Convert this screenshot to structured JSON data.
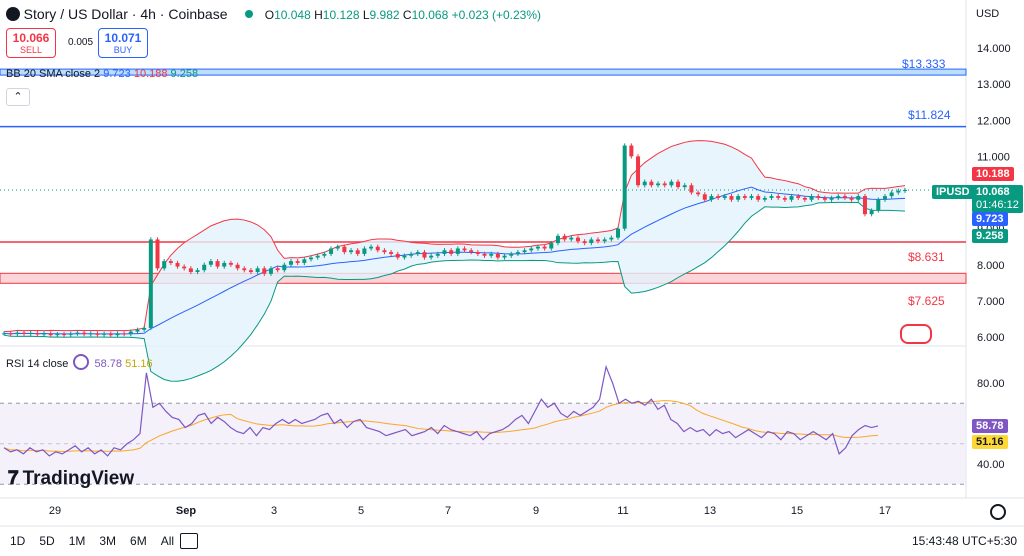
{
  "header": {
    "symbol_title": "Story / US Dollar · 4h · Coinbase",
    "ohlc": {
      "o_label": "O",
      "o": "10.048",
      "h_label": "H",
      "h": "10.128",
      "l_label": "L",
      "l": "9.982",
      "c_label": "C",
      "c": "10.068",
      "change": "+0.023 (+0.23%)"
    },
    "currency": "USD"
  },
  "trade": {
    "sell_price": "10.066",
    "sell_label": "SELL",
    "spread": "0.005",
    "buy_price": "10.071",
    "buy_label": "BUY"
  },
  "indicators": {
    "bb_name": "BB 20 SMA close 2",
    "bb_basis": "9.723",
    "bb_upper": "10.188",
    "bb_lower": "9.258",
    "rsi_name": "RSI 14 close",
    "rsi_value": "58.78",
    "rsi_ma": "51.16"
  },
  "levels": {
    "l1": "$13.333",
    "l2": "$11.824",
    "l3": "$8.631",
    "l4": "$7.625"
  },
  "price_tags": {
    "upper": "10.188",
    "symbol": "IPUSD",
    "last": "10.068",
    "countdown": "01:46:12",
    "basis": "9.723",
    "lower": "9.258"
  },
  "rsi_tags": {
    "rsi": "58.78",
    "ma": "51.16"
  },
  "bottom": {
    "timeframes": [
      "1D",
      "5D",
      "1M",
      "3M",
      "6M",
      "All"
    ],
    "time": "15:43:48 UTC+5:30",
    "logo": "TradingView"
  },
  "colors": {
    "up": "#089981",
    "down": "#f23645",
    "basis": "#2962ff",
    "rsi_line": "#7e57c2",
    "rsi_ma": "#fdd835"
  },
  "chart_data": {
    "type": "candlestick",
    "price_axis_ticks": [
      "14.000",
      "13.000",
      "12.000",
      "11.000",
      "10.000",
      "9.000",
      "8.000",
      "7.000",
      "6.000"
    ],
    "rsi_axis_ticks": [
      "80.00",
      "40.00"
    ],
    "x_ticks": [
      "29",
      "Sep",
      "3",
      "5",
      "7",
      "9",
      "11",
      "13",
      "15",
      "17"
    ],
    "price_ylim": [
      6.0,
      14.0
    ],
    "rsi_ylim": [
      30,
      90
    ],
    "hlines": [
      13.333,
      11.824,
      8.631,
      7.625
    ],
    "candles_close": [
      6.1,
      6.08,
      6.12,
      6.09,
      6.11,
      6.07,
      6.1,
      6.05,
      6.08,
      6.06,
      6.09,
      6.12,
      6.08,
      6.1,
      6.06,
      6.09,
      6.05,
      6.1,
      6.08,
      6.15,
      6.2,
      6.25,
      8.7,
      7.9,
      8.1,
      8.05,
      7.95,
      7.9,
      7.8,
      7.85,
      8.0,
      8.1,
      7.95,
      8.05,
      8.0,
      7.9,
      7.85,
      7.8,
      7.9,
      7.75,
      7.9,
      7.85,
      8.0,
      8.1,
      8.05,
      8.15,
      8.2,
      8.25,
      8.3,
      8.45,
      8.5,
      8.35,
      8.4,
      8.3,
      8.45,
      8.5,
      8.4,
      8.35,
      8.3,
      8.2,
      8.25,
      8.3,
      8.35,
      8.2,
      8.25,
      8.3,
      8.4,
      8.3,
      8.45,
      8.4,
      8.35,
      8.3,
      8.25,
      8.3,
      8.2,
      8.25,
      8.3,
      8.35,
      8.4,
      8.45,
      8.5,
      8.45,
      8.6,
      8.8,
      8.7,
      8.75,
      8.65,
      8.6,
      8.7,
      8.65,
      8.7,
      8.75,
      9.0,
      11.3,
      11.0,
      10.2,
      10.3,
      10.2,
      10.25,
      10.2,
      10.3,
      10.15,
      10.2,
      10.0,
      9.95,
      9.8,
      9.9,
      9.85,
      9.9,
      9.8,
      9.9,
      9.85,
      9.9,
      9.8,
      9.85,
      9.9,
      9.85,
      9.8,
      9.9,
      9.85,
      9.8,
      9.9,
      9.85,
      9.8,
      9.85,
      9.9,
      9.85,
      9.8,
      9.9,
      9.4,
      9.5,
      9.8,
      9.9,
      10.0,
      10.05,
      10.068
    ],
    "rsi_values": [
      48,
      46,
      47,
      45,
      48,
      46,
      47,
      44,
      46,
      45,
      47,
      49,
      46,
      48,
      45,
      47,
      44,
      48,
      47,
      50,
      52,
      55,
      85,
      68,
      70,
      66,
      63,
      62,
      58,
      60,
      64,
      65,
      60,
      63,
      61,
      58,
      56,
      55,
      58,
      54,
      58,
      57,
      60,
      62,
      60,
      62,
      60,
      61,
      62,
      64,
      65,
      60,
      62,
      58,
      61,
      62,
      58,
      57,
      56,
      54,
      55,
      56,
      57,
      54,
      55,
      56,
      58,
      55,
      59,
      57,
      56,
      55,
      54,
      56,
      52,
      55,
      56,
      57,
      59,
      62,
      64,
      60,
      66,
      72,
      68,
      70,
      65,
      63,
      66,
      64,
      66,
      68,
      72,
      88,
      80,
      70,
      72,
      70,
      71,
      69,
      72,
      67,
      69,
      62,
      60,
      56,
      58,
      56,
      57,
      54,
      57,
      55,
      56,
      53,
      55,
      57,
      55,
      53,
      56,
      55,
      52,
      56,
      55,
      52,
      54,
      56,
      54,
      52,
      55,
      45,
      48,
      54,
      57,
      59,
      58,
      58.78
    ]
  }
}
